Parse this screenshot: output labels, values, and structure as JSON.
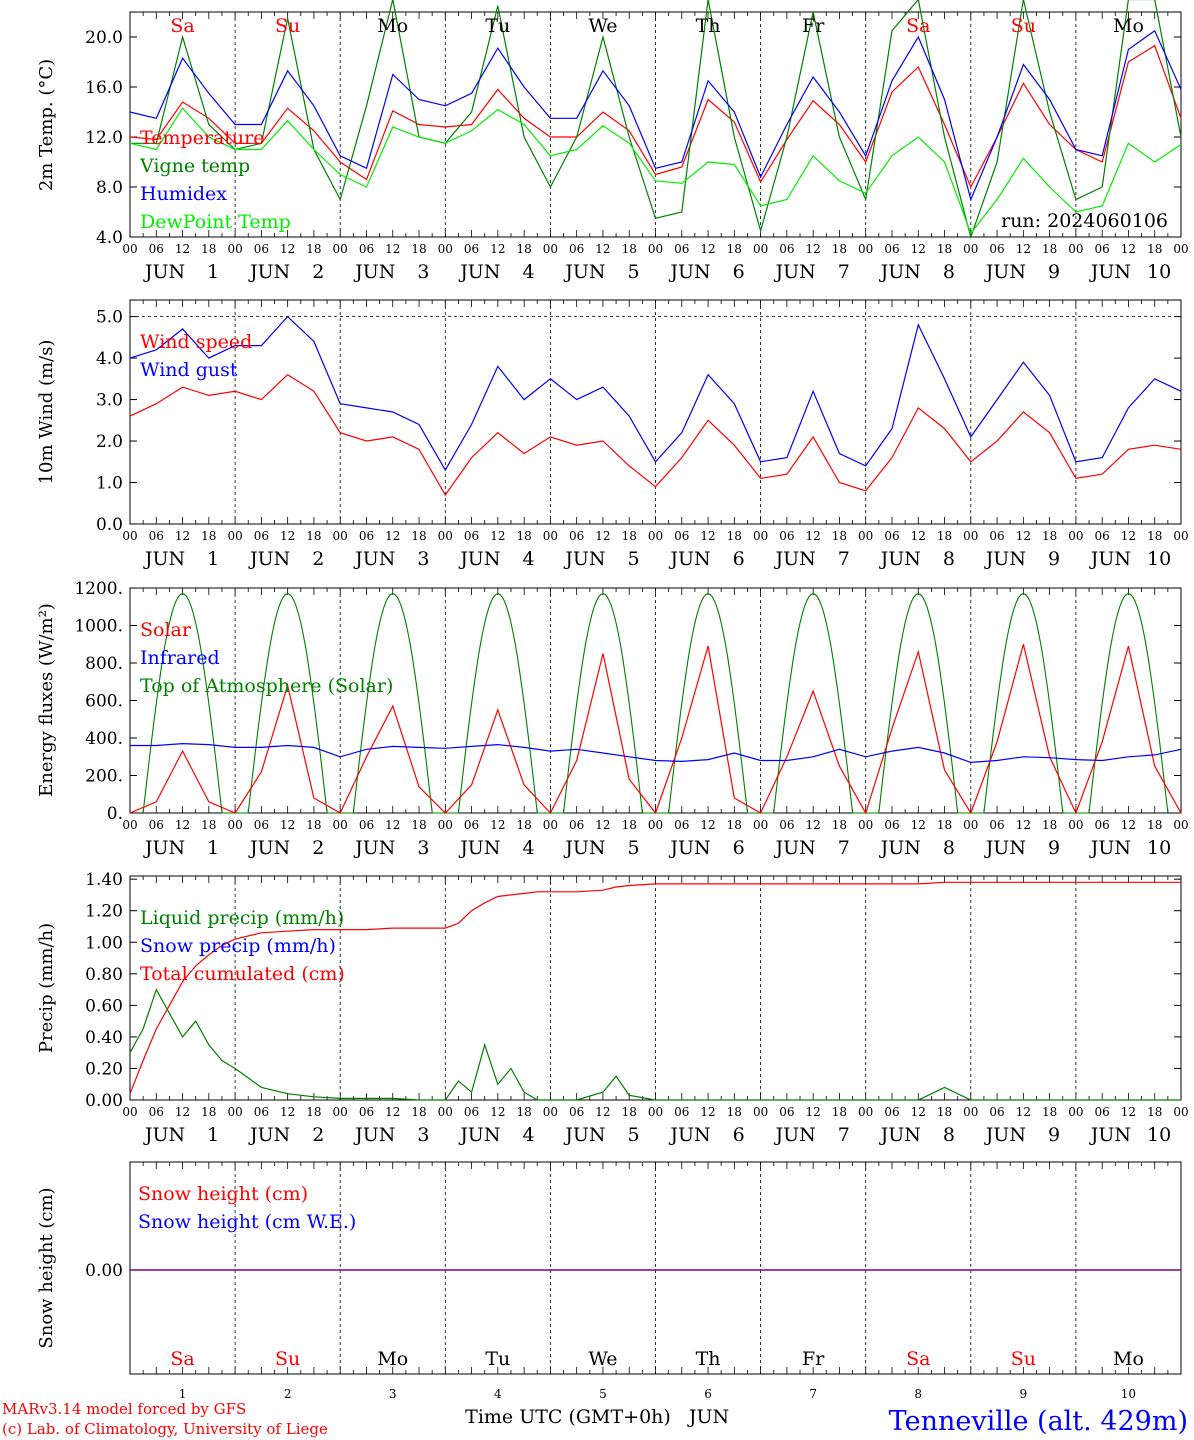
{
  "colors": {
    "red": "#ff0000",
    "blue": "#0000ff",
    "green": "#008000",
    "lightgreen": "#00ee00",
    "purple": "#800080"
  },
  "days": {
    "weekdays": [
      "Sa",
      "Su",
      "Mo",
      "Tu",
      "We",
      "Th",
      "Fr",
      "Sa",
      "Su",
      "Mo"
    ],
    "weekend_flags": [
      true,
      true,
      false,
      false,
      false,
      false,
      false,
      true,
      true,
      false
    ],
    "month": "JUN",
    "numbers": [
      "1",
      "2",
      "3",
      "4",
      "5",
      "6",
      "7",
      "8",
      "9",
      "10"
    ],
    "hour_labels": [
      "00",
      "06",
      "12",
      "18"
    ],
    "last_hour_label": "00"
  },
  "footer": {
    "model_line": "MARv3.14 model forced by GFS",
    "credit_line": "(c) Lab. of Climatology, University of Liege",
    "xlabel": "Time UTC (GMT+0h)",
    "xlabel_month": "JUN",
    "station": "Tenneville (alt. 429m)"
  },
  "chart_data": [
    {
      "type": "line",
      "ylabel": "2m Temp. (°C)",
      "ylim": [
        4.0,
        22.0
      ],
      "yticks": [
        "4.0",
        "8.0",
        "12.0",
        "16.0",
        "20.0"
      ],
      "x_hours": [
        0,
        6,
        12,
        18,
        24,
        30,
        36,
        42,
        48,
        54,
        60,
        66,
        72,
        78,
        84,
        90,
        96,
        102,
        108,
        114,
        120,
        126,
        132,
        138,
        144,
        150,
        156,
        162,
        168,
        174,
        180,
        186,
        192,
        198,
        204,
        210,
        216,
        222,
        228,
        234,
        240
      ],
      "annotation": "run: 2024060106",
      "series": [
        {
          "name": "Temperature",
          "color": "red",
          "values": [
            12.0,
            11.8,
            14.8,
            13.5,
            11.5,
            11.5,
            14.3,
            12.5,
            10.0,
            8.6,
            14.1,
            13.0,
            12.8,
            13.0,
            15.8,
            13.5,
            12.0,
            12.0,
            14.0,
            12.5,
            9.0,
            9.6,
            15.0,
            13.2,
            8.4,
            11.8,
            14.9,
            13.0,
            10.0,
            15.6,
            17.6,
            13.0,
            8.0,
            12.0,
            16.3,
            13.0,
            11.0,
            10.0,
            18.0,
            19.3,
            13.5
          ]
        },
        {
          "name": "Vigne temp",
          "color": "green",
          "values": [
            11.5,
            11.5,
            20.0,
            13.0,
            11.0,
            11.5,
            21.5,
            11.0,
            7.0,
            14.5,
            23.0,
            12.0,
            11.5,
            14.0,
            22.5,
            12.0,
            8.0,
            12.0,
            20.0,
            12.0,
            5.5,
            6.0,
            23.0,
            12.0,
            4.5,
            12.0,
            22.0,
            12.0,
            7.0,
            20.5,
            23.0,
            12.0,
            4.0,
            10.0,
            23.0,
            14.0,
            7.0,
            8.0,
            23.0,
            23.0,
            12.0
          ]
        },
        {
          "name": "Humidex",
          "color": "blue",
          "values": [
            14.0,
            13.5,
            18.3,
            15.5,
            13.0,
            13.0,
            17.3,
            14.5,
            10.5,
            9.5,
            17.0,
            15.0,
            14.5,
            15.5,
            19.1,
            16.0,
            13.5,
            13.5,
            17.3,
            14.5,
            9.5,
            10.0,
            16.5,
            14.0,
            8.8,
            13.0,
            16.8,
            14.0,
            10.5,
            16.5,
            20.0,
            15.0,
            7.0,
            12.0,
            17.8,
            15.0,
            11.0,
            10.5,
            19.0,
            20.5,
            15.8
          ]
        },
        {
          "name": "DewPoint Temp",
          "color": "lightgreen",
          "values": [
            11.5,
            11.0,
            14.3,
            12.0,
            11.0,
            11.0,
            13.3,
            11.0,
            9.0,
            8.0,
            12.8,
            12.0,
            11.5,
            12.5,
            14.2,
            13.0,
            10.5,
            11.0,
            12.9,
            11.5,
            8.5,
            8.3,
            10.0,
            9.8,
            6.5,
            7.0,
            10.5,
            8.5,
            7.5,
            10.5,
            12.0,
            10.0,
            4.3,
            7.0,
            10.3,
            8.0,
            6.0,
            6.5,
            11.5,
            10.0,
            11.4
          ]
        }
      ]
    },
    {
      "type": "line",
      "ylabel": "10m Wind (m/s)",
      "ylim": [
        0.0,
        5.4
      ],
      "yticks": [
        "0.0",
        "1.0",
        "2.0",
        "3.0",
        "4.0",
        "5.0"
      ],
      "x_hours": [
        0,
        6,
        12,
        18,
        24,
        30,
        36,
        42,
        48,
        54,
        60,
        66,
        72,
        78,
        84,
        90,
        96,
        102,
        108,
        114,
        120,
        126,
        132,
        138,
        144,
        150,
        156,
        162,
        168,
        174,
        180,
        186,
        192,
        198,
        204,
        210,
        216,
        222,
        228,
        234,
        240
      ],
      "series": [
        {
          "name": "Wind speed",
          "color": "red",
          "values": [
            2.6,
            2.9,
            3.3,
            3.1,
            3.2,
            3.0,
            3.6,
            3.2,
            2.2,
            2.0,
            2.1,
            1.8,
            0.7,
            1.6,
            2.2,
            1.7,
            2.1,
            1.9,
            2.0,
            1.4,
            0.9,
            1.6,
            2.5,
            1.9,
            1.1,
            1.2,
            2.1,
            1.0,
            0.8,
            1.6,
            2.8,
            2.3,
            1.5,
            2.0,
            2.7,
            2.2,
            1.1,
            1.2,
            1.8,
            1.9,
            1.8
          ]
        },
        {
          "name": "Wind gust",
          "color": "blue",
          "values": [
            4.0,
            4.2,
            4.7,
            4.0,
            4.3,
            4.3,
            5.0,
            4.4,
            2.9,
            2.8,
            2.7,
            2.4,
            1.3,
            2.4,
            3.8,
            3.0,
            3.5,
            3.0,
            3.3,
            2.6,
            1.5,
            2.2,
            3.6,
            2.9,
            1.5,
            1.6,
            3.2,
            1.7,
            1.4,
            2.3,
            4.8,
            3.5,
            2.1,
            3.0,
            3.9,
            3.1,
            1.5,
            1.6,
            2.8,
            3.5,
            3.2
          ]
        }
      ]
    },
    {
      "type": "line",
      "ylabel": "Energy fluxes (W/m²)",
      "ylim": [
        0,
        1200
      ],
      "yticks": [
        "0.",
        "200.",
        "400.",
        "600.",
        "800.",
        "1000.",
        "1200."
      ],
      "x_hours": [
        0,
        6,
        12,
        18,
        24,
        30,
        36,
        42,
        48,
        54,
        60,
        66,
        72,
        78,
        84,
        90,
        96,
        102,
        108,
        114,
        120,
        126,
        132,
        138,
        144,
        150,
        156,
        162,
        168,
        174,
        180,
        186,
        192,
        198,
        204,
        210,
        216,
        222,
        228,
        234,
        240
      ],
      "toa_peak": 1170,
      "series": [
        {
          "name": "Solar",
          "color": "red",
          "values": [
            0,
            60,
            330,
            60,
            0,
            220,
            680,
            80,
            0,
            300,
            570,
            140,
            0,
            150,
            550,
            150,
            0,
            280,
            850,
            180,
            0,
            400,
            890,
            80,
            0,
            300,
            650,
            250,
            0,
            450,
            860,
            230,
            0,
            380,
            900,
            300,
            0,
            380,
            890,
            250,
            0
          ]
        },
        {
          "name": "Infrared",
          "color": "blue",
          "values": [
            360,
            360,
            370,
            365,
            350,
            350,
            360,
            350,
            300,
            340,
            355,
            350,
            345,
            355,
            365,
            350,
            330,
            340,
            320,
            300,
            280,
            275,
            285,
            320,
            280,
            280,
            300,
            340,
            300,
            330,
            350,
            320,
            270,
            280,
            300,
            295,
            285,
            280,
            300,
            310,
            340
          ]
        },
        {
          "name": "Top of Atmosphere (Solar)",
          "color": "green",
          "values": []
        }
      ]
    },
    {
      "type": "line",
      "ylabel": "Precip (mm/h)",
      "ylim": [
        0.0,
        1.42
      ],
      "yticks": [
        "0.00",
        "0.20",
        "0.40",
        "0.60",
        "0.80",
        "1.00",
        "1.20",
        "1.40"
      ],
      "x_hours": [
        0,
        3,
        6,
        9,
        12,
        15,
        18,
        21,
        24,
        30,
        36,
        42,
        48,
        54,
        60,
        66,
        72,
        75,
        78,
        81,
        84,
        87,
        90,
        93,
        96,
        102,
        108,
        111,
        114,
        120,
        126,
        132,
        138,
        144,
        150,
        156,
        162,
        168,
        174,
        180,
        186,
        192,
        198,
        204,
        210,
        216,
        222,
        228,
        234,
        240
      ],
      "series": [
        {
          "name": "Liquid precip (mm/h)",
          "color": "green",
          "values": [
            0.3,
            0.45,
            0.7,
            0.55,
            0.4,
            0.5,
            0.35,
            0.25,
            0.2,
            0.08,
            0.04,
            0.02,
            0.01,
            0.01,
            0.01,
            0.0,
            0.0,
            0.12,
            0.05,
            0.35,
            0.1,
            0.2,
            0.05,
            0.0,
            0.0,
            0.0,
            0.05,
            0.15,
            0.03,
            0.0,
            0.0,
            0.0,
            0.0,
            0.0,
            0.0,
            0.0,
            0.0,
            0.0,
            0.0,
            0.0,
            0.08,
            0.0,
            0.0,
            0.0,
            0.0,
            0.0,
            0.0,
            0.0,
            0.0,
            0.0
          ]
        },
        {
          "name": "Snow precip (mm/h)",
          "color": "blue",
          "values": []
        },
        {
          "name": "Total cumulated (cm)",
          "color": "red",
          "values": [
            0.04,
            0.25,
            0.45,
            0.6,
            0.75,
            0.85,
            0.92,
            0.98,
            1.02,
            1.06,
            1.07,
            1.08,
            1.08,
            1.08,
            1.09,
            1.09,
            1.09,
            1.12,
            1.2,
            1.25,
            1.29,
            1.3,
            1.31,
            1.32,
            1.32,
            1.32,
            1.33,
            1.35,
            1.36,
            1.37,
            1.37,
            1.37,
            1.37,
            1.37,
            1.37,
            1.37,
            1.37,
            1.37,
            1.37,
            1.37,
            1.38,
            1.38,
            1.38,
            1.38,
            1.38,
            1.38,
            1.38,
            1.38,
            1.38,
            1.38
          ]
        }
      ]
    },
    {
      "type": "line",
      "ylabel": "Snow height (cm)",
      "yticks": [
        "0.00"
      ],
      "series": [
        {
          "name": "Snow height (cm)",
          "color": "red",
          "values": [
            0.0,
            0.0
          ]
        },
        {
          "name": "Snow height (cm W.E.)",
          "color": "blue",
          "values": [
            0.0,
            0.0
          ]
        }
      ]
    }
  ]
}
